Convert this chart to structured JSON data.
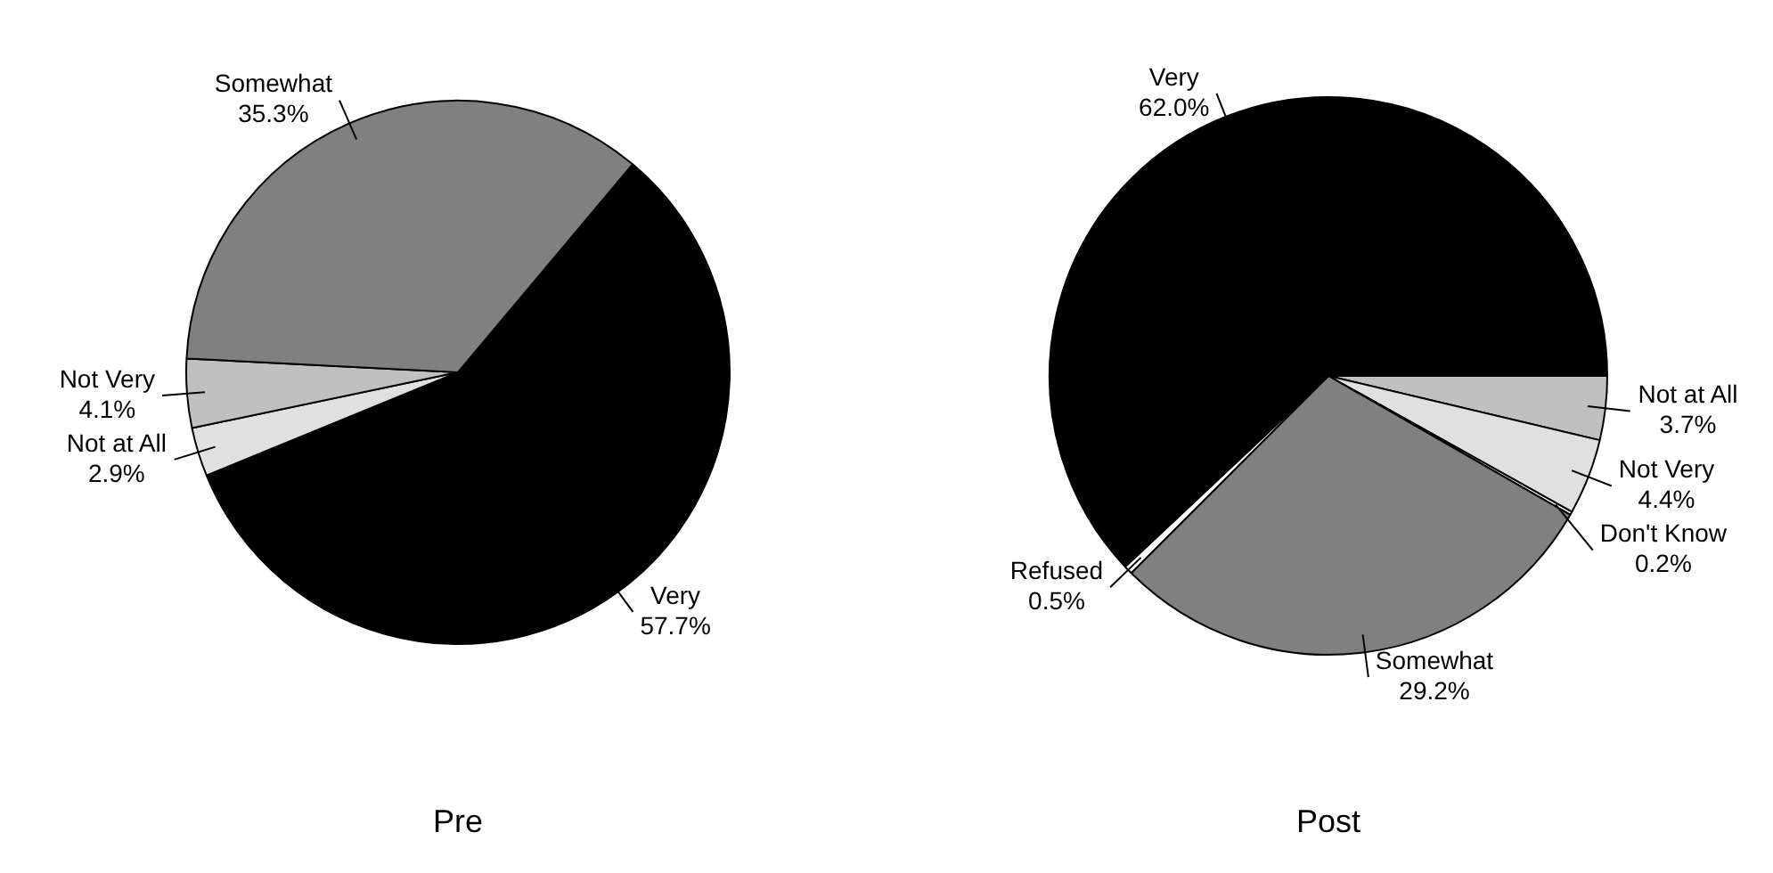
{
  "chart_data": [
    {
      "type": "pie",
      "title": "Pre",
      "categories": [
        "Very",
        "Not at All",
        "Not Very",
        "Somewhat"
      ],
      "values": [
        57.7,
        2.9,
        4.1,
        35.3
      ],
      "colors": [
        "#000000",
        "#e0e0e0",
        "#c0c0c0",
        "#808080"
      ],
      "value_labels": [
        "57.7%",
        "2.9%",
        "4.1%",
        "35.3%"
      ]
    },
    {
      "type": "pie",
      "title": "Post",
      "categories": [
        "Not at All",
        "Not Very",
        "Don't Know",
        "Somewhat",
        "Refused",
        "Very"
      ],
      "values": [
        3.7,
        4.4,
        0.2,
        29.2,
        0.5,
        62.0
      ],
      "colors": [
        "#c0c0c0",
        "#e0e0e0",
        "#ffffff",
        "#808080",
        "#ffffff",
        "#000000"
      ],
      "value_labels": [
        "3.7%",
        "4.4%",
        "0.2%",
        "29.2%",
        "0.5%",
        "62.0%"
      ]
    }
  ]
}
